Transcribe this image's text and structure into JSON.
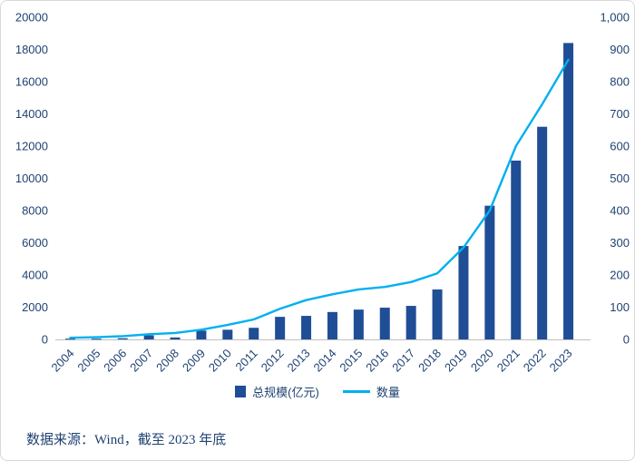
{
  "chart_data": {
    "type": "combo-bar-line",
    "title": "",
    "grid": false,
    "legend_position": "bottom",
    "categories": [
      "2004",
      "2005",
      "2006",
      "2007",
      "2008",
      "2009",
      "2010",
      "2011",
      "2012",
      "2013",
      "2014",
      "2015",
      "2016",
      "2017",
      "2018",
      "2019",
      "2020",
      "2021",
      "2022",
      "2023"
    ],
    "series": [
      {
        "name": "总规模(亿元)",
        "type": "bar",
        "axis": "left",
        "color": "#1f4e96",
        "values": [
          45,
          40,
          70,
          250,
          120,
          550,
          600,
          720,
          1400,
          1460,
          1700,
          1850,
          1970,
          2080,
          3100,
          5800,
          8300,
          11100,
          13200,
          18400
        ]
      },
      {
        "name": "数量",
        "type": "line",
        "axis": "right",
        "color": "#00b0f0",
        "values": [
          5,
          7,
          10,
          16,
          20,
          30,
          45,
          62,
          95,
          122,
          140,
          155,
          163,
          178,
          205,
          285,
          400,
          600,
          730,
          868
        ]
      }
    ],
    "left_axis": {
      "min": 0,
      "max": 20000,
      "step": 2000,
      "ticks": [
        "0",
        "2000",
        "4000",
        "6000",
        "8000",
        "10000",
        "12000",
        "14000",
        "16000",
        "18000",
        "20000"
      ]
    },
    "right_axis": {
      "min": 0,
      "max": 1000,
      "step": 100,
      "ticks": [
        "0",
        "100",
        "200",
        "300",
        "400",
        "500",
        "600",
        "700",
        "800",
        "900",
        "1,000"
      ]
    }
  },
  "source_note": "数据来源：Wind，截至 2023 年底",
  "colors": {
    "axis_line": "#bfbfbf",
    "text": "#1f4273",
    "background": "#ffffff"
  }
}
